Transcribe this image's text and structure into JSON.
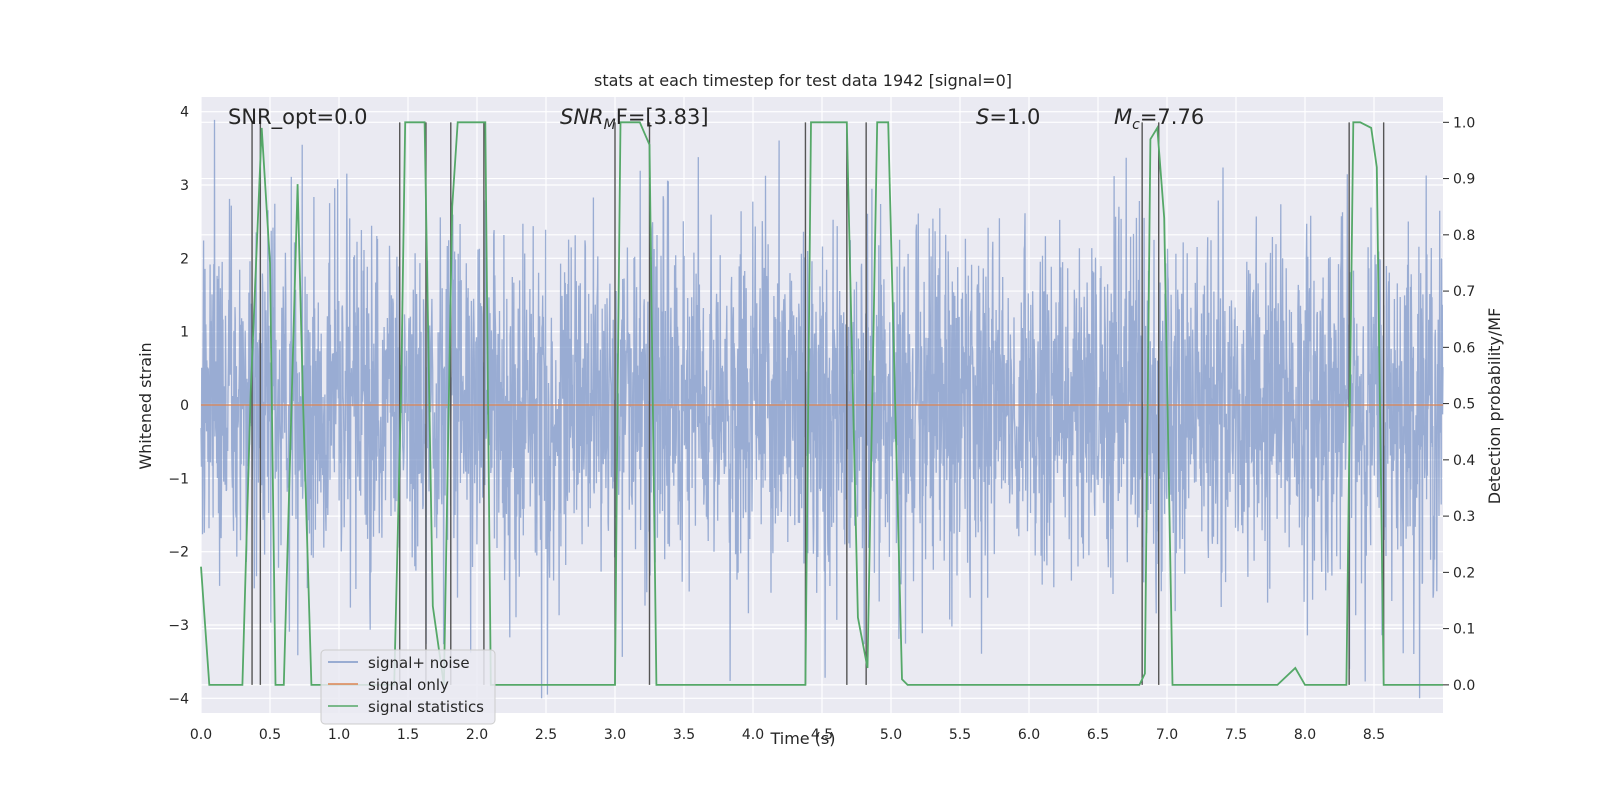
{
  "chart_data": {
    "type": "line",
    "title": "stats at each timestep for test data 1942 [signal=0]",
    "xlabel": "Time (s)",
    "ylabel": "Whitened strain",
    "y2label": "Detection probability/MF",
    "xlim": [
      0.0,
      9.0
    ],
    "ylim": [
      -4.2,
      4.2
    ],
    "y2lim": [
      -0.05,
      1.045
    ],
    "xticks": [
      0.0,
      0.5,
      1.0,
      1.5,
      2.0,
      2.5,
      3.0,
      3.5,
      4.0,
      4.5,
      5.0,
      5.5,
      6.0,
      6.5,
      7.0,
      7.5,
      8.0,
      8.5
    ],
    "xtick_labels": [
      "0.0",
      "0.5",
      "1.0",
      "1.5",
      "2.0",
      "2.5",
      "3.0",
      "3.5",
      "4.0",
      "4.5",
      "5.0",
      "5.5",
      "6.0",
      "6.5",
      "7.0",
      "7.5",
      "8.0",
      "8.5"
    ],
    "yticks": [
      -4,
      -3,
      -2,
      -1,
      0,
      1,
      2,
      3,
      4
    ],
    "ytick_labels": [
      "−4",
      "−3",
      "−2",
      "−1",
      "0",
      "1",
      "2",
      "3",
      "4"
    ],
    "y2ticks": [
      0.0,
      0.1,
      0.2,
      0.3,
      0.4,
      0.5,
      0.6,
      0.7,
      0.8,
      0.9,
      1.0
    ],
    "y2tick_labels": [
      "0.0",
      "0.1",
      "0.2",
      "0.3",
      "0.4",
      "0.5",
      "0.6",
      "0.7",
      "0.8",
      "0.9",
      "1.0"
    ],
    "annotations": {
      "snr_opt": "SNR_opt=0.0",
      "snr_mf_main": "SNR",
      "snr_mf_sub": "M",
      "snr_mf_rest": "F=[3.83]",
      "s_main": "S",
      "s_rest": "=1.0",
      "mc_main": "M",
      "mc_sub": "c",
      "mc_rest": "=7.76"
    },
    "legend": {
      "location": "lower left",
      "entries": [
        "signal+ noise",
        "signal only",
        "signal statistics"
      ]
    },
    "colors": {
      "noise": "#7e97c8",
      "signal": "#dd8452",
      "stats": "#55a868",
      "vline": "#555555",
      "background": "#eaeaf2",
      "grid": "#ffffff"
    },
    "noise": {
      "approx_sigma": 1.2,
      "approx_range": [
        -4.0,
        4.0
      ],
      "sample_rate_hz": 2048
    },
    "series": [
      {
        "name": "signal statistics",
        "axis": "right",
        "x": [
          0.0,
          0.06,
          0.2,
          0.3,
          0.36,
          0.44,
          0.5,
          0.54,
          0.6,
          0.7,
          0.74,
          0.8,
          0.9,
          1.0,
          1.2,
          1.4,
          1.45,
          1.48,
          1.51,
          1.62,
          1.68,
          1.76,
          1.82,
          1.86,
          2.06,
          2.1,
          2.2,
          2.4,
          2.6,
          2.8,
          3.0,
          3.02,
          3.04,
          3.18,
          3.25,
          3.3,
          3.5,
          4.0,
          4.35,
          4.38,
          4.42,
          4.68,
          4.76,
          4.83,
          4.9,
          4.98,
          5.08,
          5.12,
          5.5,
          6.0,
          6.5,
          6.8,
          6.84,
          6.88,
          6.93,
          6.98,
          7.04,
          7.1,
          7.5,
          7.8,
          7.93,
          8.0,
          8.1,
          8.3,
          8.35,
          8.4,
          8.48,
          8.52,
          8.57,
          8.6,
          9.0
        ],
        "y": [
          0.21,
          0.0,
          0.0,
          0.0,
          0.52,
          0.99,
          0.75,
          0.0,
          0.0,
          0.89,
          0.5,
          0.0,
          0.0,
          0.0,
          0.0,
          0.0,
          0.52,
          1.0,
          1.0,
          1.0,
          0.14,
          0.0,
          0.85,
          1.0,
          1.0,
          0.0,
          0.0,
          0.0,
          0.0,
          0.0,
          0.0,
          0.55,
          1.0,
          1.0,
          0.96,
          0.0,
          0.0,
          0.0,
          0.0,
          0.0,
          1.0,
          1.0,
          0.12,
          0.03,
          1.0,
          1.0,
          0.01,
          0.0,
          0.0,
          0.0,
          0.0,
          0.0,
          0.02,
          0.97,
          0.99,
          0.83,
          0.0,
          0.0,
          0.0,
          0.0,
          0.03,
          0.0,
          0.0,
          0.0,
          1.0,
          1.0,
          0.99,
          0.92,
          0.0,
          0.0,
          0.0
        ]
      }
    ],
    "vlines_x": [
      0.37,
      0.43,
      1.44,
      1.63,
      1.81,
      2.05,
      3.0,
      3.25,
      4.38,
      4.68,
      4.82,
      6.82,
      6.94,
      8.32,
      8.57
    ]
  }
}
